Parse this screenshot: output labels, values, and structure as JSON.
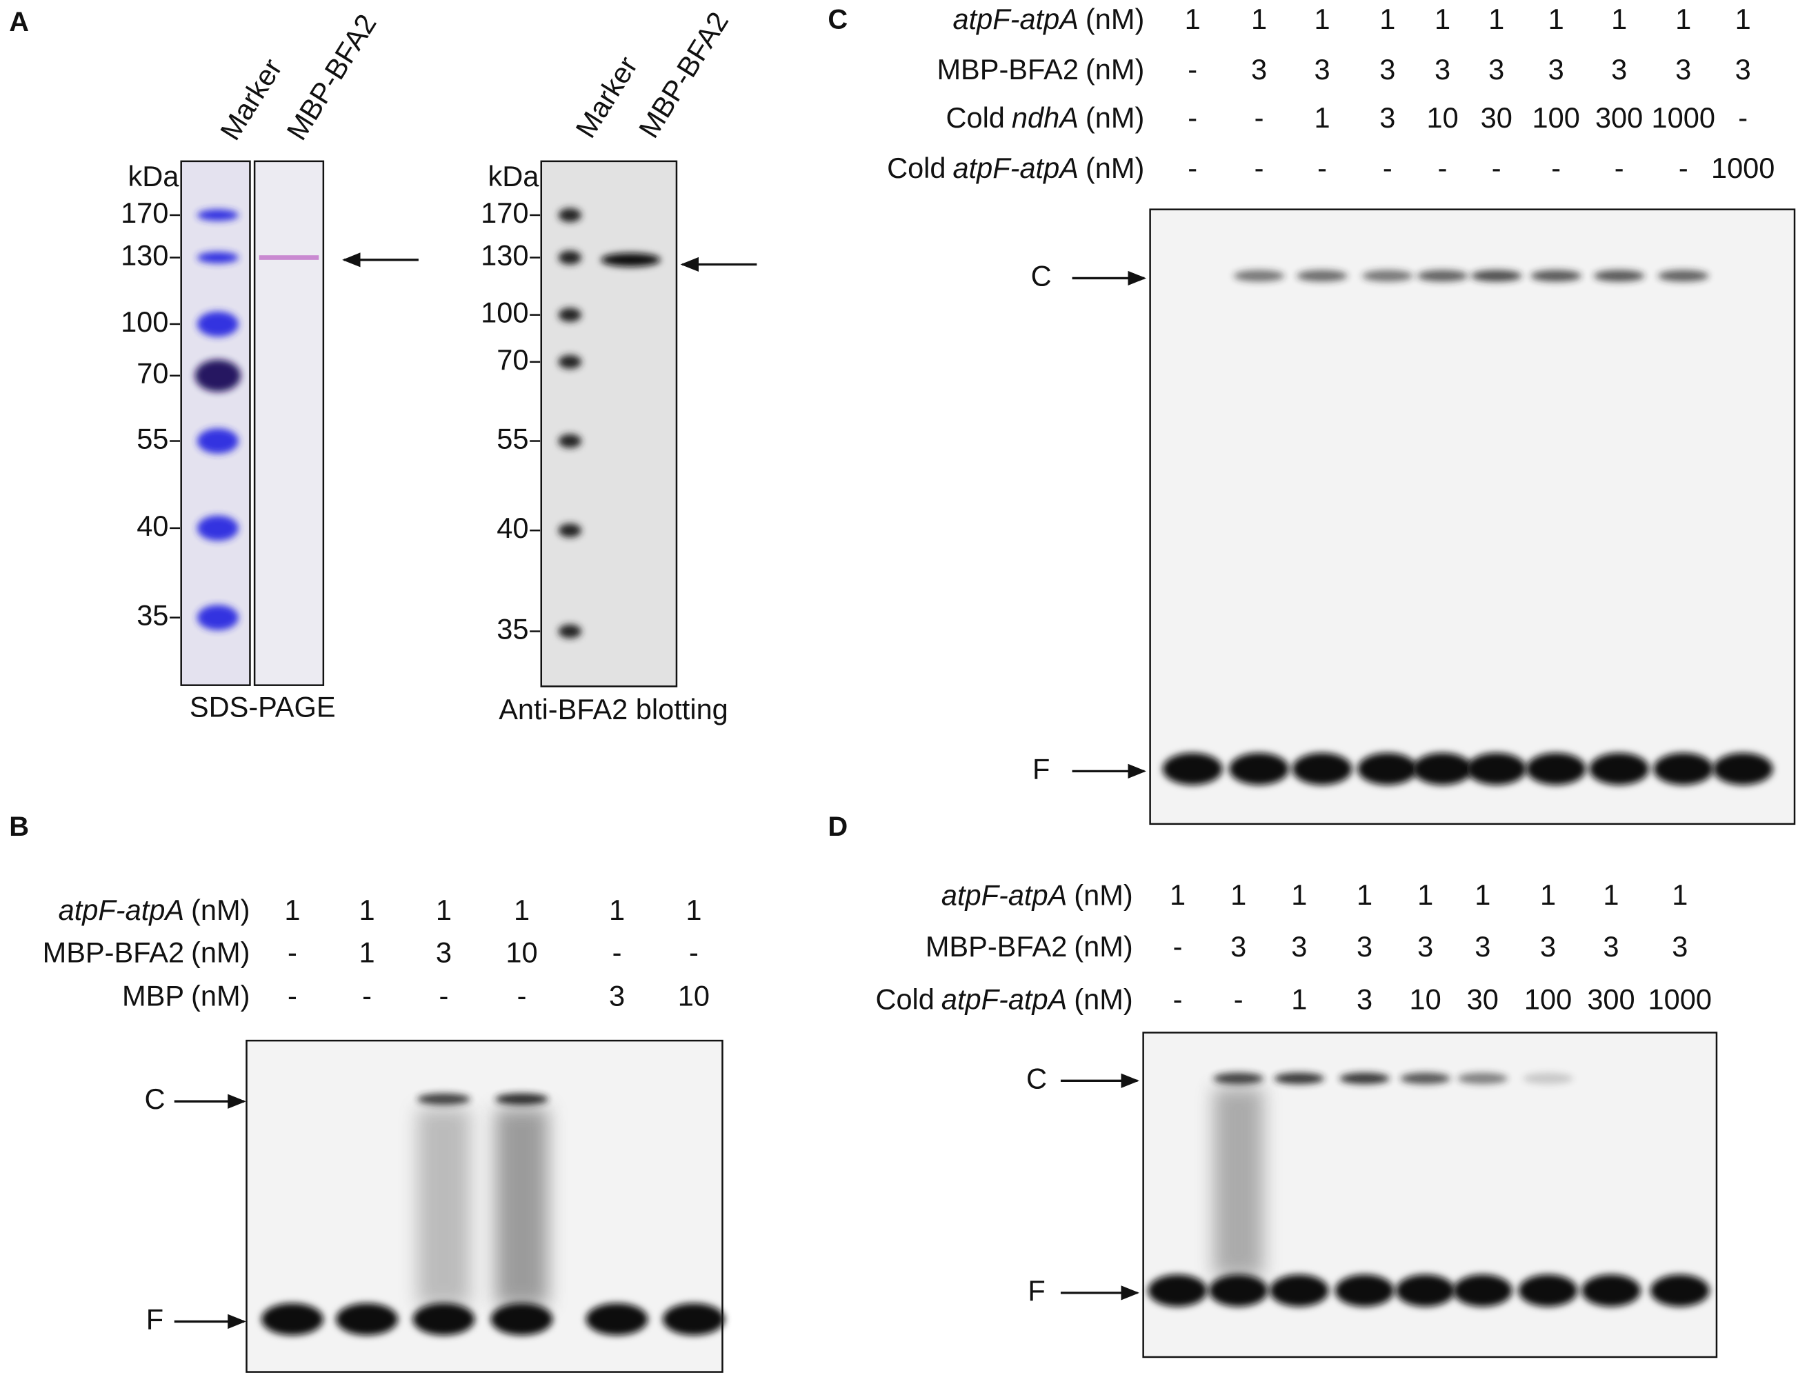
{
  "A": {
    "letter": "A",
    "sds": {
      "lanes": [
        "Marker",
        "MBP-BFA2"
      ],
      "unit": "kDa",
      "markers": [
        170,
        130,
        100,
        70,
        55,
        40,
        35
      ],
      "caption": "SDS-PAGE"
    },
    "blot": {
      "lanes": [
        "Marker",
        "MBP-BFA2"
      ],
      "unit": "kDa",
      "markers": [
        170,
        130,
        100,
        70,
        55,
        40,
        35
      ],
      "caption": "Anti-BFA2 blotting"
    }
  },
  "B": {
    "letter": "B",
    "bands": [
      "C",
      "F"
    ],
    "rows": [
      {
        "parts": [
          {
            "text": "atpF-atpA",
            "italic": true
          },
          {
            "text": "(nM)",
            "italic": false
          }
        ],
        "values": [
          "1",
          "1",
          "1",
          "1",
          "1",
          "1"
        ]
      },
      {
        "parts": [
          {
            "text": "MBP-BFA2",
            "italic": false
          },
          {
            "text": "(nM)",
            "italic": false
          }
        ],
        "values": [
          "-",
          "1",
          "3",
          "10",
          "-",
          "-"
        ]
      },
      {
        "parts": [
          {
            "text": "MBP",
            "italic": false
          },
          {
            "text": "(nM)",
            "italic": false
          }
        ],
        "values": [
          "-",
          "-",
          "-",
          "-",
          "3",
          "10"
        ]
      }
    ]
  },
  "C": {
    "letter": "C",
    "bands": [
      "C",
      "F"
    ],
    "rows": [
      {
        "parts": [
          {
            "text": "atpF-atpA",
            "italic": true
          },
          {
            "text": "(nM)",
            "italic": false
          }
        ],
        "values": [
          "1",
          "1",
          "1",
          "1",
          "1",
          "1",
          "1",
          "1",
          "1",
          "1"
        ]
      },
      {
        "parts": [
          {
            "text": "MBP-BFA2",
            "italic": false
          },
          {
            "text": "(nM)",
            "italic": false
          }
        ],
        "values": [
          "-",
          "3",
          "3",
          "3",
          "3",
          "3",
          "3",
          "3",
          "3",
          "3"
        ]
      },
      {
        "parts": [
          {
            "text": "Cold",
            "italic": false
          },
          {
            "text": "ndhA",
            "italic": true
          },
          {
            "text": "(nM)",
            "italic": false
          }
        ],
        "values": [
          "-",
          "-",
          "1",
          "3",
          "10",
          "30",
          "100",
          "300",
          "1000",
          "-"
        ]
      },
      {
        "parts": [
          {
            "text": "Cold",
            "italic": false
          },
          {
            "text": "atpF-atpA",
            "italic": true
          },
          {
            "text": "(nM)",
            "italic": false
          }
        ],
        "values": [
          "-",
          "-",
          "-",
          "-",
          "-",
          "-",
          "-",
          "-",
          "-",
          "1000"
        ]
      }
    ]
  },
  "D": {
    "letter": "D",
    "bands": [
      "C",
      "F"
    ],
    "rows": [
      {
        "parts": [
          {
            "text": "atpF-atpA",
            "italic": true
          },
          {
            "text": "(nM)",
            "italic": false
          }
        ],
        "values": [
          "1",
          "1",
          "1",
          "1",
          "1",
          "1",
          "1",
          "1",
          "1"
        ]
      },
      {
        "parts": [
          {
            "text": "MBP-BFA2",
            "italic": false
          },
          {
            "text": "(nM)",
            "italic": false
          }
        ],
        "values": [
          "-",
          "3",
          "3",
          "3",
          "3",
          "3",
          "3",
          "3",
          "3"
        ]
      },
      {
        "parts": [
          {
            "text": "Cold",
            "italic": false
          },
          {
            "text": "atpF-atpA",
            "italic": true
          },
          {
            "text": "(nM)",
            "italic": false
          }
        ],
        "values": [
          "-",
          "-",
          "1",
          "3",
          "10",
          "30",
          "100",
          "300",
          "1000"
        ]
      }
    ]
  }
}
